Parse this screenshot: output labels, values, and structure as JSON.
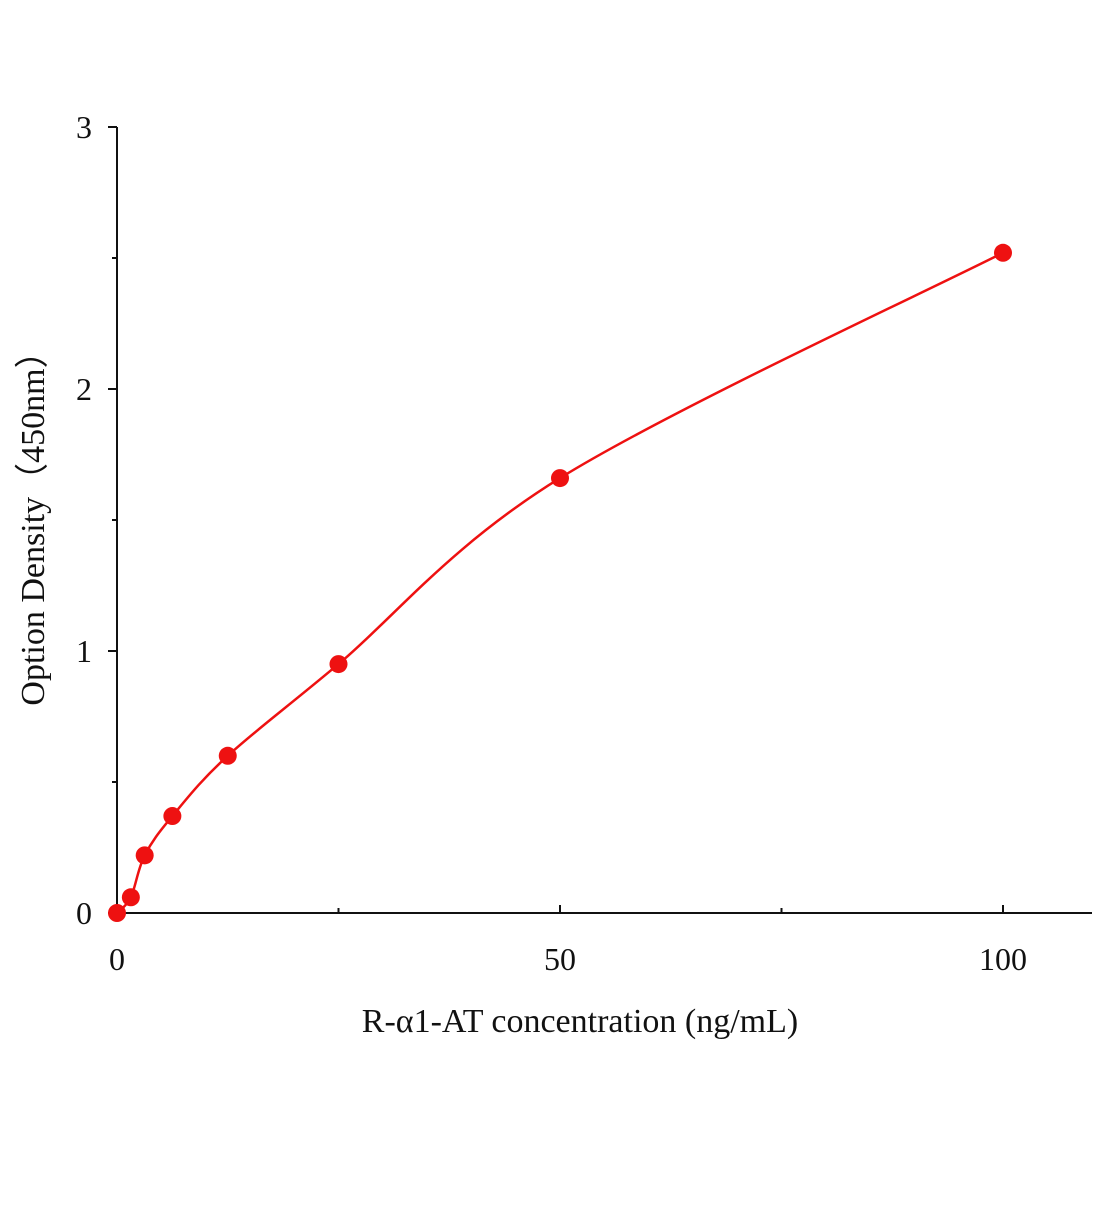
{
  "chart_data": {
    "type": "scatter",
    "title": "",
    "xlabel": "R-α1-AT concentration (ng/mL)",
    "ylabel": "Option Density（450nm）",
    "xlim": [
      0,
      110
    ],
    "ylim": [
      0,
      3
    ],
    "x_ticks": [
      "0",
      "50",
      "100"
    ],
    "y_ticks": [
      "0",
      "1",
      "2",
      "3"
    ],
    "grid": false,
    "series": [
      {
        "x": [
          0,
          1.5625,
          3.125,
          6.25,
          12.5,
          25,
          50,
          100
        ],
        "y": [
          0,
          0.06,
          0.22,
          0.37,
          0.6,
          0.95,
          1.66,
          2.52
        ],
        "fit_curve": true,
        "color": "#ee1111"
      }
    ]
  }
}
